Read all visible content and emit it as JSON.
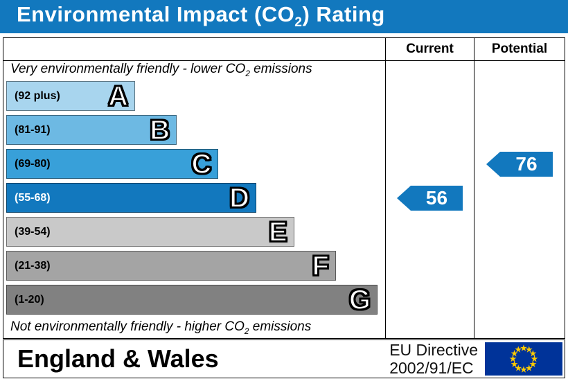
{
  "title": {
    "pre": "Environmental Impact (CO",
    "sub": "2",
    "post": ") Rating"
  },
  "header": {
    "current": "Current",
    "potential": "Potential"
  },
  "notes": {
    "top": {
      "pre": "Very environmentally friendly - lower CO",
      "sub": "2",
      "post": " emissions"
    },
    "bottom": {
      "pre": "Not environmentally friendly - higher CO",
      "sub": "2",
      "post": " emissions"
    }
  },
  "bands": [
    {
      "letter": "A",
      "range": "(92 plus)",
      "color": "#a8d5ee",
      "width_pct": 34,
      "text_color": "#000000"
    },
    {
      "letter": "B",
      "range": "(81-91)",
      "color": "#6db9e3",
      "width_pct": 45,
      "text_color": "#000000"
    },
    {
      "letter": "C",
      "range": "(69-80)",
      "color": "#38a0d9",
      "width_pct": 56,
      "text_color": "#000000"
    },
    {
      "letter": "D",
      "range": "(55-68)",
      "color": "#1278be",
      "width_pct": 66,
      "text_color": "#ffffff"
    },
    {
      "letter": "E",
      "range": "(39-54)",
      "color": "#c9c9c9",
      "width_pct": 76,
      "text_color": "#000000"
    },
    {
      "letter": "F",
      "range": "(21-38)",
      "color": "#a4a4a4",
      "width_pct": 87,
      "text_color": "#000000"
    },
    {
      "letter": "G",
      "range": "(1-20)",
      "color": "#818181",
      "width_pct": 98,
      "text_color": "#000000"
    }
  ],
  "ratings": {
    "current": {
      "value": "56",
      "band_index": 3
    },
    "potential": {
      "value": "76",
      "band_index": 2
    }
  },
  "footer": {
    "region": "England & Wales",
    "directive_line1": "EU Directive",
    "directive_line2": "2002/91/EC"
  },
  "colors": {
    "accent_blue": "#1278be",
    "eu_flag_blue": "#003399",
    "eu_star_yellow": "#ffcc00"
  },
  "chart_data": {
    "type": "bar",
    "title": "Environmental Impact (CO2) Rating",
    "categories": [
      "A",
      "B",
      "C",
      "D",
      "E",
      "F",
      "G"
    ],
    "band_ranges": [
      "92 plus",
      "81-91",
      "69-80",
      "55-68",
      "39-54",
      "21-38",
      "1-20"
    ],
    "bar_lengths_pct": [
      34,
      45,
      56,
      66,
      76,
      87,
      98
    ],
    "series": [
      {
        "name": "Current",
        "value": 56,
        "band": "D"
      },
      {
        "name": "Potential",
        "value": 76,
        "band": "C"
      }
    ],
    "annotations": [
      "Very environmentally friendly - lower CO2 emissions",
      "Not environmentally friendly - higher CO2 emissions"
    ],
    "legend_position": "column-headers",
    "region_label": "England & Wales",
    "directive_label": "EU Directive 2002/91/EC"
  }
}
